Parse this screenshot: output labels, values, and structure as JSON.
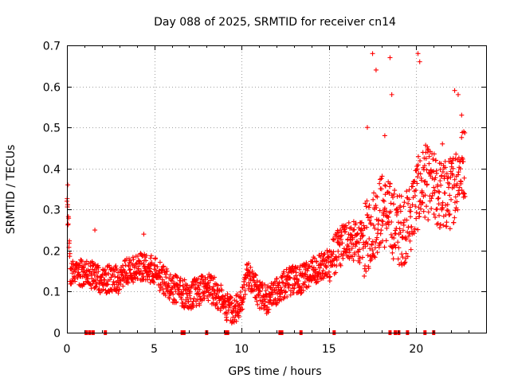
{
  "chart_data": {
    "type": "scatter",
    "title": "Day 088 of 2025, SRMTID for receiver cn14",
    "xlabel": "GPS time / hours",
    "ylabel": "SRMTID / TECUs",
    "xlim": [
      0,
      24
    ],
    "ylim": [
      0,
      0.7
    ],
    "x_ticks": [
      "0",
      "5",
      "10",
      "15",
      "20"
    ],
    "y_ticks": [
      "0",
      "0.1",
      "0.2",
      "0.3",
      "0.4",
      "0.5",
      "0.6",
      "0.7"
    ],
    "grid": true,
    "marker": "plus",
    "color": "#ff0000",
    "series": [
      {
        "name": "SRMTID",
        "trend": [
          [
            0.0,
            0.34
          ],
          [
            0.05,
            0.3
          ],
          [
            0.2,
            0.14
          ],
          [
            0.5,
            0.14
          ],
          [
            1.0,
            0.15
          ],
          [
            1.5,
            0.14
          ],
          [
            2.0,
            0.13
          ],
          [
            2.5,
            0.13
          ],
          [
            3.0,
            0.13
          ],
          [
            3.5,
            0.15
          ],
          [
            4.0,
            0.16
          ],
          [
            4.5,
            0.16
          ],
          [
            5.0,
            0.15
          ],
          [
            5.5,
            0.13
          ],
          [
            6.0,
            0.11
          ],
          [
            6.5,
            0.1
          ],
          [
            7.0,
            0.09
          ],
          [
            7.5,
            0.1
          ],
          [
            8.0,
            0.11
          ],
          [
            8.5,
            0.1
          ],
          [
            9.0,
            0.07
          ],
          [
            9.5,
            0.05
          ],
          [
            10.0,
            0.07
          ],
          [
            10.3,
            0.14
          ],
          [
            10.7,
            0.13
          ],
          [
            11.0,
            0.09
          ],
          [
            11.5,
            0.08
          ],
          [
            12.0,
            0.1
          ],
          [
            12.5,
            0.12
          ],
          [
            13.0,
            0.13
          ],
          [
            13.5,
            0.13
          ],
          [
            14.0,
            0.15
          ],
          [
            14.5,
            0.16
          ],
          [
            15.0,
            0.17
          ],
          [
            15.5,
            0.2
          ],
          [
            16.0,
            0.23
          ],
          [
            16.5,
            0.22
          ],
          [
            17.0,
            0.22
          ],
          [
            17.5,
            0.26
          ],
          [
            18.0,
            0.3
          ],
          [
            18.5,
            0.28
          ],
          [
            19.0,
            0.25
          ],
          [
            19.5,
            0.26
          ],
          [
            20.0,
            0.33
          ],
          [
            20.5,
            0.37
          ],
          [
            21.0,
            0.35
          ],
          [
            21.5,
            0.33
          ],
          [
            22.0,
            0.34
          ],
          [
            22.5,
            0.4
          ],
          [
            22.8,
            0.42
          ]
        ],
        "peaks": [
          [
            17.5,
            0.68
          ],
          [
            17.7,
            0.64
          ],
          [
            18.5,
            0.67
          ],
          [
            18.6,
            0.58
          ],
          [
            20.1,
            0.68
          ],
          [
            20.2,
            0.66
          ],
          [
            22.2,
            0.59
          ],
          [
            22.4,
            0.58
          ],
          [
            22.6,
            0.53
          ],
          [
            17.2,
            0.5
          ],
          [
            18.2,
            0.48
          ],
          [
            21.5,
            0.46
          ],
          [
            0.05,
            0.36
          ],
          [
            4.4,
            0.24
          ],
          [
            1.6,
            0.25
          ]
        ]
      }
    ],
    "data_gaps_x": [
      1.1,
      1.3,
      1.5,
      2.2,
      6.6,
      6.7,
      8.0,
      9.1,
      9.2,
      12.2,
      12.3,
      13.4,
      15.3,
      18.5,
      18.8,
      19.0,
      19.5,
      20.5,
      21.0
    ]
  }
}
